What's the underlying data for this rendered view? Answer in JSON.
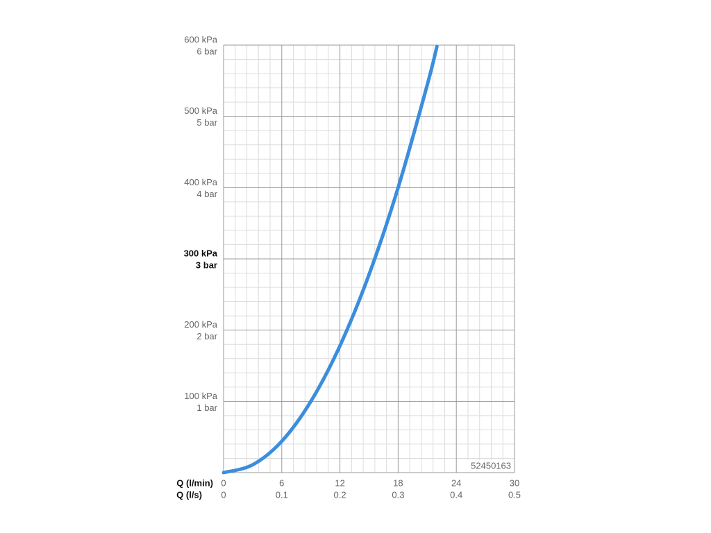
{
  "chart_data": {
    "type": "line",
    "x_label": "Q (l/min)",
    "x2_label": "Q (l/s)",
    "x": [
      0,
      3,
      6,
      9,
      12,
      15,
      18,
      21,
      22
    ],
    "series": [
      {
        "color": "#3b8ddd",
        "values": [
          0,
          11,
          44,
          100,
          178,
          278,
          400,
          544,
          598
        ]
      }
    ],
    "xlim": [
      0,
      30
    ],
    "xticks": [
      0,
      6,
      12,
      18,
      24,
      30
    ],
    "x2lim": [
      0,
      0.5
    ],
    "x2ticks": [
      0,
      0.1,
      0.2,
      0.3,
      0.4,
      0.5
    ],
    "ylim": [
      0,
      600
    ],
    "yticks": [
      {
        "value": 100,
        "label": "100 kPa"
      },
      {
        "value": 200,
        "label": "200 kPa"
      },
      {
        "value": 300,
        "label": "300 kPa"
      },
      {
        "value": 400,
        "label": "400 kPa"
      },
      {
        "value": 500,
        "label": "500 kPa"
      },
      {
        "value": 600,
        "label": "600 kPa"
      }
    ],
    "ytick_bar_labels": [
      "1 bar",
      "2 bar",
      "3 bar",
      "4 bar",
      "5 bar",
      "6 bar"
    ],
    "highlighted_ytick": 300,
    "grid": true,
    "minor_divisions": 5,
    "annotation": "52450163"
  }
}
